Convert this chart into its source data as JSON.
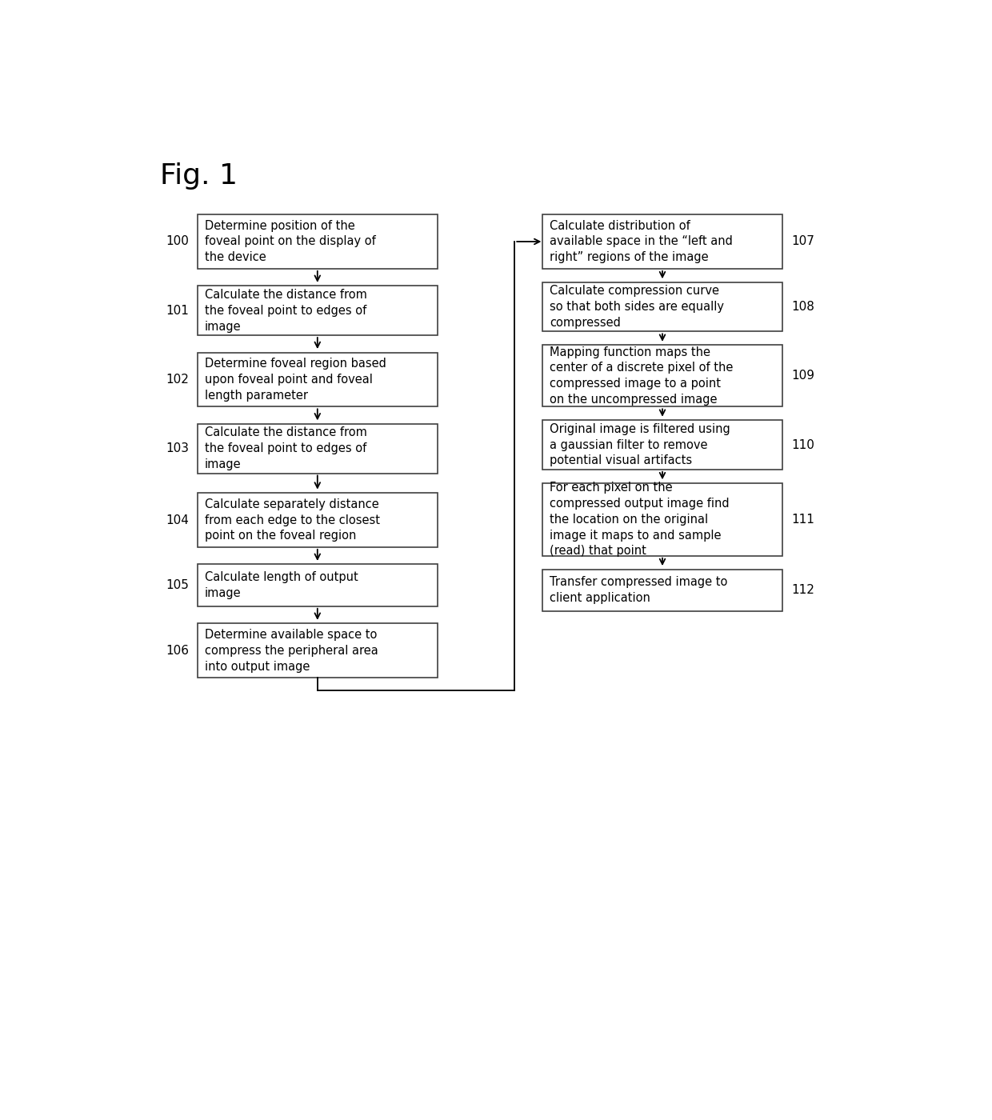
{
  "title": "Fig. 1",
  "background_color": "#ffffff",
  "left_boxes": [
    {
      "id": 100,
      "text": "Determine position of the\nfoveal point on the display of\nthe device"
    },
    {
      "id": 101,
      "text": "Calculate the distance from\nthe foveal point to edges of\nimage"
    },
    {
      "id": 102,
      "text": "Determine foveal region based\nupon foveal point and foveal\nlength parameter"
    },
    {
      "id": 103,
      "text": "Calculate the distance from\nthe foveal point to edges of\nimage"
    },
    {
      "id": 104,
      "text": "Calculate separately distance\nfrom each edge to the closest\npoint on the foveal region"
    },
    {
      "id": 105,
      "text": "Calculate length of output\nimage"
    },
    {
      "id": 106,
      "text": "Determine available space to\ncompress the peripheral area\ninto output image"
    }
  ],
  "right_boxes": [
    {
      "id": 107,
      "text": "Calculate distribution of\navailable space in the “left and\nright” regions of the image"
    },
    {
      "id": 108,
      "text": "Calculate compression curve\nso that both sides are equally\ncompressed"
    },
    {
      "id": 109,
      "text": "Mapping function maps the\ncenter of a discrete pixel of the\ncompressed image to a point\non the uncompressed image"
    },
    {
      "id": 110,
      "text": "Original image is filtered using\na gaussian filter to remove\npotential visual artifacts"
    },
    {
      "id": 111,
      "text": "For each pixel on the\ncompressed output image find\nthe location on the original\nimage it maps to and sample\n(read) that point"
    },
    {
      "id": 112,
      "text": "Transfer compressed image to\nclient application"
    }
  ],
  "font_size": 10.5,
  "label_font_size": 11,
  "title_font_size": 26
}
